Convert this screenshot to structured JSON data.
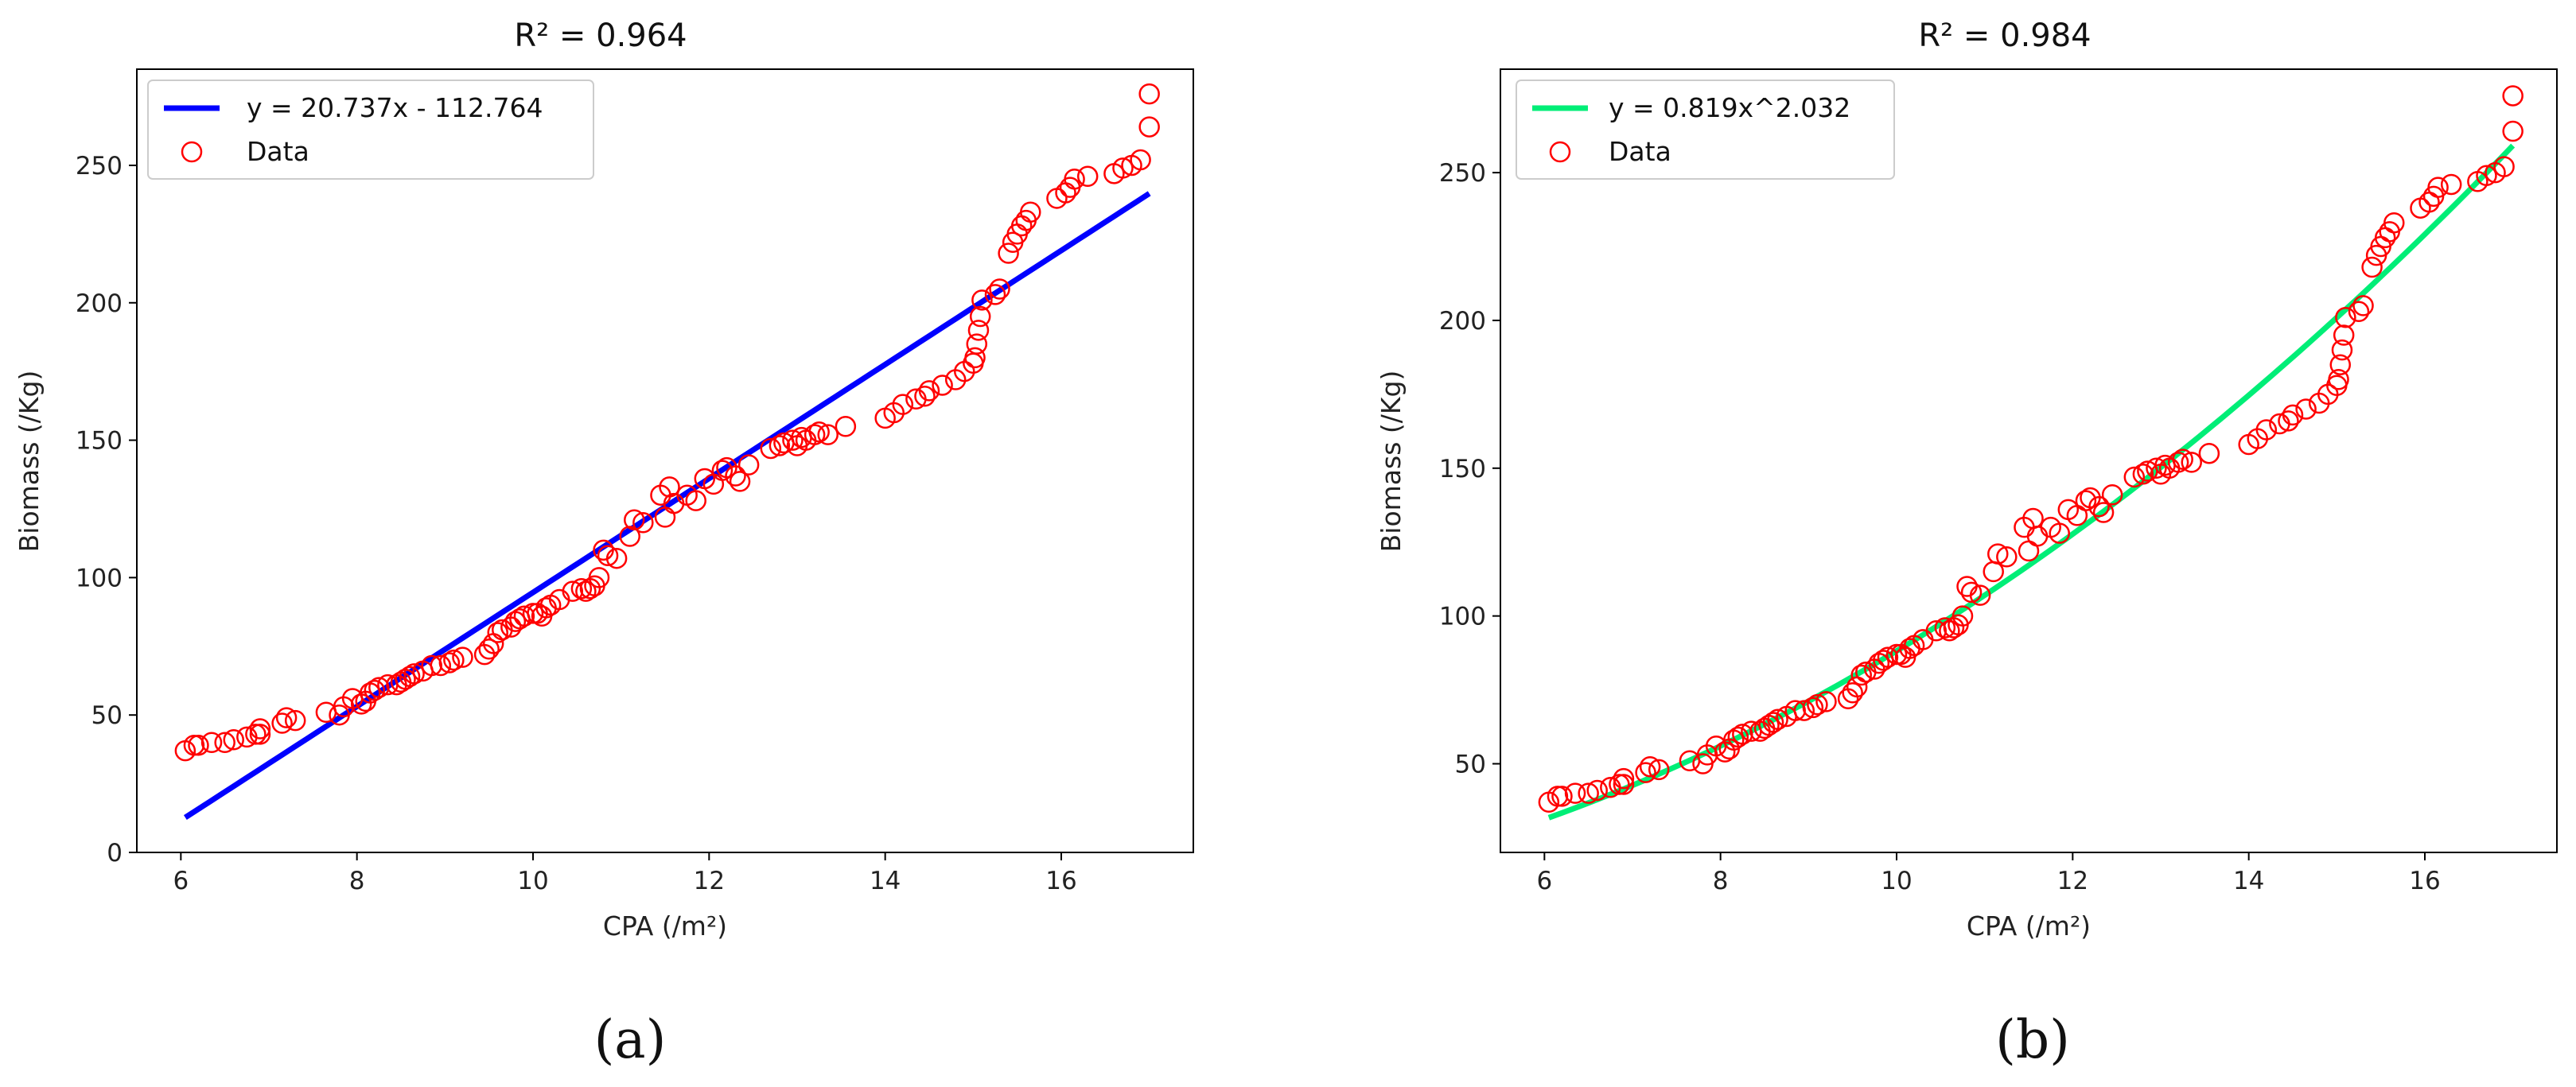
{
  "captions": [
    "(a)",
    "(b)"
  ],
  "chart_data": [
    {
      "type": "scatter",
      "title": "R² = 0.964",
      "xlabel": "CPA (/m²)",
      "ylabel": "Biomass (/Kg)",
      "xlim": [
        5.5,
        17.5
      ],
      "ylim": [
        0,
        285
      ],
      "xticks": [
        6,
        8,
        10,
        12,
        14,
        16
      ],
      "yticks": [
        0,
        50,
        100,
        150,
        200,
        250
      ],
      "grid": false,
      "legend_position": "top-left",
      "fit": {
        "label": "y = 20.737x - 112.764",
        "kind": "linear",
        "a": 20.737,
        "b": -112.764,
        "color": "#0000ff"
      },
      "series": [
        {
          "name": "Data",
          "marker": "open-circle",
          "color": "#ff0000",
          "x": [
            6.05,
            6.15,
            6.2,
            6.35,
            6.5,
            6.6,
            6.75,
            6.85,
            6.9,
            6.9,
            7.15,
            7.2,
            7.3,
            7.65,
            7.8,
            7.85,
            7.95,
            8.05,
            8.1,
            8.15,
            8.2,
            8.25,
            8.35,
            8.45,
            8.5,
            8.55,
            8.6,
            8.65,
            8.75,
            8.85,
            8.95,
            9.05,
            9.1,
            9.2,
            9.45,
            9.5,
            9.55,
            9.6,
            9.65,
            9.75,
            9.8,
            9.85,
            9.9,
            10.0,
            10.05,
            10.1,
            10.15,
            10.2,
            10.3,
            10.45,
            10.55,
            10.6,
            10.65,
            10.7,
            10.75,
            10.8,
            10.85,
            10.95,
            11.1,
            11.15,
            11.25,
            11.45,
            11.5,
            11.55,
            11.6,
            11.75,
            11.85,
            11.95,
            12.05,
            12.15,
            12.2,
            12.3,
            12.35,
            12.45,
            12.7,
            12.8,
            12.85,
            12.95,
            13.0,
            13.05,
            13.1,
            13.2,
            13.25,
            13.35,
            13.55,
            14.0,
            14.1,
            14.2,
            14.35,
            14.45,
            14.5,
            14.65,
            14.8,
            14.9,
            15.0,
            15.02,
            15.04,
            15.06,
            15.08,
            15.1,
            15.25,
            15.3,
            15.4,
            15.45,
            15.5,
            15.55,
            15.6,
            15.65,
            15.95,
            16.05,
            16.1,
            16.15,
            16.3,
            16.6,
            16.7,
            16.8,
            16.9,
            17.0,
            17.0
          ],
          "y": [
            37,
            39,
            39,
            40,
            40,
            41,
            42,
            43,
            45,
            43,
            47,
            49,
            48,
            51,
            50,
            53,
            56,
            54,
            55,
            58,
            59,
            60,
            61,
            61,
            62,
            63,
            64,
            65,
            66,
            68,
            68,
            69,
            70,
            71,
            72,
            74,
            76,
            80,
            81,
            82,
            84,
            85,
            86,
            87,
            87,
            86,
            89,
            90,
            92,
            95,
            96,
            95,
            96,
            97,
            100,
            110,
            108,
            107,
            115,
            121,
            120,
            130,
            122,
            133,
            127,
            130,
            128,
            136,
            134,
            139,
            140,
            137,
            135,
            141,
            147,
            148,
            149,
            150,
            148,
            151,
            150,
            152,
            153,
            152,
            155,
            158,
            160,
            163,
            165,
            166,
            168,
            170,
            172,
            175,
            178,
            180,
            185,
            190,
            195,
            201,
            203,
            205,
            218,
            222,
            225,
            228,
            230,
            233,
            238,
            240,
            242,
            245,
            246,
            247,
            249,
            250,
            252,
            264,
            276
          ]
        }
      ]
    },
    {
      "type": "scatter",
      "title": "R² = 0.984",
      "xlabel": "CPA (/m²)",
      "ylabel": "Biomass (/Kg)",
      "xlim": [
        5.5,
        17.5
      ],
      "ylim": [
        20,
        285
      ],
      "xticks": [
        6,
        8,
        10,
        12,
        14,
        16
      ],
      "yticks": [
        50,
        100,
        150,
        200,
        250
      ],
      "grid": false,
      "legend_position": "top-left",
      "fit": {
        "label": "y = 0.819x^2.032",
        "kind": "power",
        "a": 0.819,
        "b": 2.032,
        "color": "#00ee77"
      },
      "series": [
        {
          "name": "Data",
          "marker": "open-circle",
          "color": "#ff0000",
          "x": [
            6.05,
            6.15,
            6.2,
            6.35,
            6.5,
            6.6,
            6.75,
            6.85,
            6.9,
            6.9,
            7.15,
            7.2,
            7.3,
            7.65,
            7.8,
            7.85,
            7.95,
            8.05,
            8.1,
            8.15,
            8.2,
            8.25,
            8.35,
            8.45,
            8.5,
            8.55,
            8.6,
            8.65,
            8.75,
            8.85,
            8.95,
            9.05,
            9.1,
            9.2,
            9.45,
            9.5,
            9.55,
            9.6,
            9.65,
            9.75,
            9.8,
            9.85,
            9.9,
            10.0,
            10.05,
            10.1,
            10.15,
            10.2,
            10.3,
            10.45,
            10.55,
            10.6,
            10.65,
            10.7,
            10.75,
            10.8,
            10.85,
            10.95,
            11.1,
            11.15,
            11.25,
            11.45,
            11.5,
            11.55,
            11.6,
            11.75,
            11.85,
            11.95,
            12.05,
            12.15,
            12.2,
            12.3,
            12.35,
            12.45,
            12.7,
            12.8,
            12.85,
            12.95,
            13.0,
            13.05,
            13.1,
            13.2,
            13.25,
            13.35,
            13.55,
            14.0,
            14.1,
            14.2,
            14.35,
            14.45,
            14.5,
            14.65,
            14.8,
            14.9,
            15.0,
            15.02,
            15.04,
            15.06,
            15.08,
            15.1,
            15.25,
            15.3,
            15.4,
            15.45,
            15.5,
            15.55,
            15.6,
            15.65,
            15.95,
            16.05,
            16.1,
            16.15,
            16.3,
            16.6,
            16.7,
            16.8,
            16.9,
            17.0,
            17.0
          ],
          "y": [
            37,
            39,
            39,
            40,
            40,
            41,
            42,
            43,
            45,
            43,
            47,
            49,
            48,
            51,
            50,
            53,
            56,
            54,
            55,
            58,
            59,
            60,
            61,
            61,
            62,
            63,
            64,
            65,
            66,
            68,
            68,
            69,
            70,
            71,
            72,
            74,
            76,
            80,
            81,
            82,
            84,
            85,
            86,
            87,
            87,
            86,
            89,
            90,
            92,
            95,
            96,
            95,
            96,
            97,
            100,
            110,
            108,
            107,
            115,
            121,
            120,
            130,
            122,
            133,
            127,
            130,
            128,
            136,
            134,
            139,
            140,
            137,
            135,
            141,
            147,
            148,
            149,
            150,
            148,
            151,
            150,
            152,
            153,
            152,
            155,
            158,
            160,
            163,
            165,
            166,
            168,
            170,
            172,
            175,
            178,
            180,
            185,
            190,
            195,
            201,
            203,
            205,
            218,
            222,
            225,
            228,
            230,
            233,
            238,
            240,
            242,
            245,
            246,
            247,
            249,
            250,
            252,
            264,
            276
          ]
        }
      ]
    }
  ]
}
